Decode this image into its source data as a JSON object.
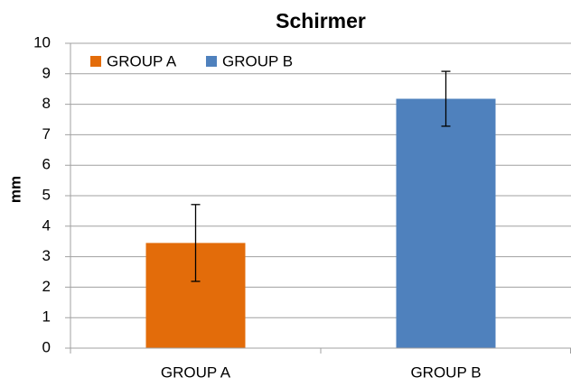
{
  "chart_data": {
    "type": "bar",
    "title": "Schirmer",
    "y_label": "mm",
    "categories": [
      "GROUP A",
      "GROUP B"
    ],
    "values": [
      3.45,
      8.18
    ],
    "errors": [
      1.26,
      0.9
    ],
    "colors": [
      "#e36c0a",
      "#4f81bd"
    ],
    "ylim": [
      0,
      10
    ],
    "yticks": [
      0,
      1,
      2,
      3,
      4,
      5,
      6,
      7,
      8,
      9,
      10
    ],
    "grid": true,
    "legend": "top-left"
  }
}
